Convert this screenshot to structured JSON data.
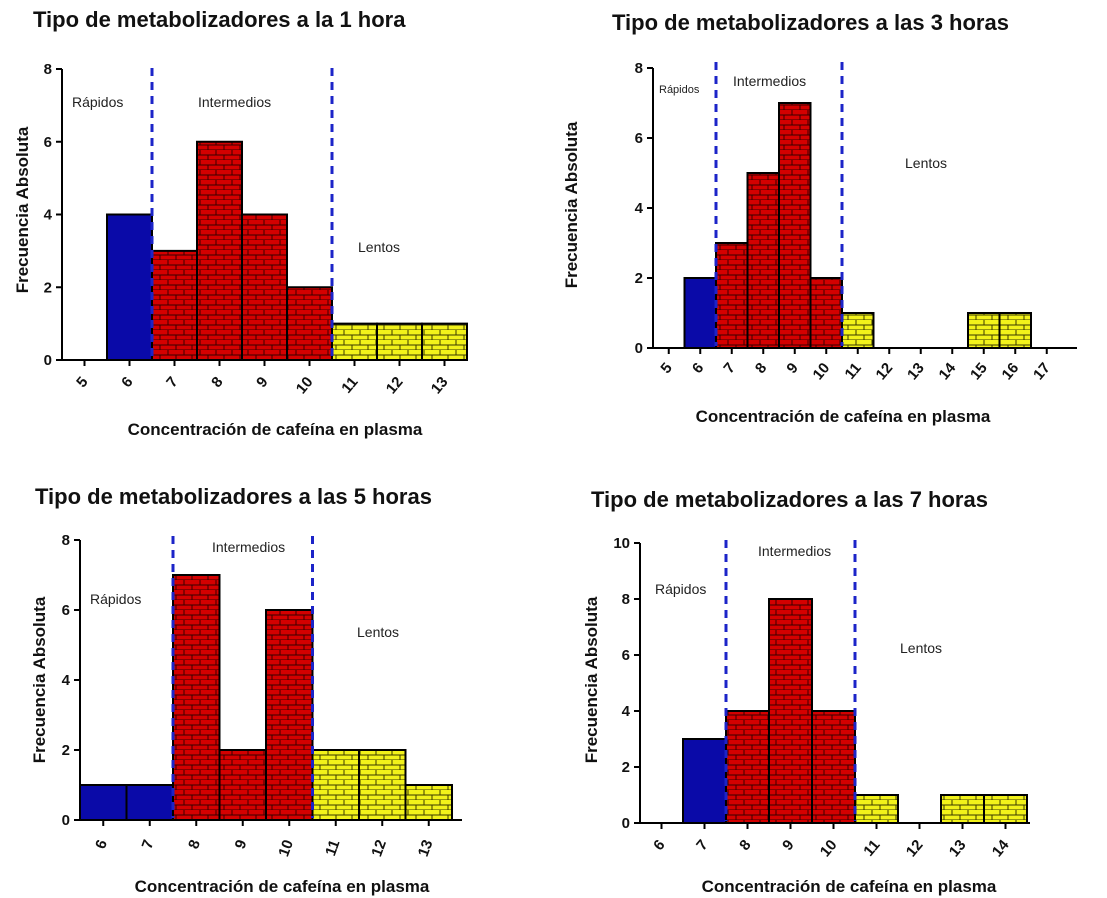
{
  "chart_data": [
    {
      "type": "bar",
      "title": "Tipo de metabolizadores a la 1 hora",
      "xlabel": "Concentración de cafeína en plasma",
      "ylabel": "Frecuencia Absoluta",
      "categories": [
        "5",
        "6",
        "7",
        "8",
        "9",
        "10",
        "11",
        "12",
        "13"
      ],
      "values": [
        0,
        4,
        3,
        6,
        4,
        2,
        1,
        1,
        1
      ],
      "groups": [
        "Rápidos",
        "Rápidos",
        "Intermedios",
        "Intermedios",
        "Intermedios",
        "Intermedios",
        "Lentos",
        "Lentos",
        "Lentos"
      ],
      "ylim": [
        0,
        8
      ],
      "yticks": [
        0,
        2,
        4,
        6,
        8
      ],
      "regions": [
        "Rápidos",
        "Intermedios",
        "Lentos"
      ]
    },
    {
      "type": "bar",
      "title": "Tipo de metabolizadores a las 3 horas",
      "xlabel": "Concentración de cafeína en plasma",
      "ylabel": "Frecuencia Absoluta",
      "categories": [
        "5",
        "6",
        "7",
        "8",
        "9",
        "10",
        "11",
        "12",
        "13",
        "14",
        "15",
        "16",
        "17"
      ],
      "values": [
        0,
        2,
        3,
        5,
        7,
        2,
        1,
        0,
        0,
        0,
        1,
        1,
        0
      ],
      "groups": [
        "Rápidos",
        "Rápidos",
        "Intermedios",
        "Intermedios",
        "Intermedios",
        "Intermedios",
        "Lentos",
        "Lentos",
        "Lentos",
        "Lentos",
        "Lentos",
        "Lentos",
        "Lentos"
      ],
      "ylim": [
        0,
        8
      ],
      "yticks": [
        0,
        2,
        4,
        6,
        8
      ],
      "regions": [
        "Rápidos",
        "Intermedios",
        "Lentos"
      ]
    },
    {
      "type": "bar",
      "title": "Tipo de metabolizadores a las 5 horas",
      "xlabel": "Concentración de cafeína en plasma",
      "ylabel": "Frecuencia Absoluta",
      "categories": [
        "6",
        "7",
        "8",
        "9",
        "10",
        "11",
        "12",
        "13"
      ],
      "values": [
        1,
        1,
        7,
        2,
        6,
        2,
        2,
        1
      ],
      "groups": [
        "Rápidos",
        "Rápidos",
        "Intermedios",
        "Intermedios",
        "Intermedios",
        "Lentos",
        "Lentos",
        "Lentos"
      ],
      "ylim": [
        0,
        8
      ],
      "yticks": [
        0,
        2,
        4,
        6,
        8
      ],
      "regions": [
        "Rápidos",
        "Intermedios",
        "Lentos"
      ]
    },
    {
      "type": "bar",
      "title": "Tipo de metabolizadores a las 7 horas",
      "xlabel": "Concentración de cafeína en plasma",
      "ylabel": "Frecuencia Absoluta",
      "categories": [
        "6",
        "7",
        "8",
        "9",
        "10",
        "11",
        "12",
        "13",
        "14"
      ],
      "values": [
        0,
        3,
        4,
        8,
        4,
        1,
        0,
        1,
        1
      ],
      "groups": [
        "Rápidos",
        "Rápidos",
        "Intermedios",
        "Intermedios",
        "Intermedios",
        "Lentos",
        "Lentos",
        "Lentos",
        "Lentos"
      ],
      "ylim": [
        0,
        10
      ],
      "yticks": [
        0,
        2,
        4,
        6,
        8,
        10
      ],
      "regions": [
        "Rápidos",
        "Intermedios",
        "Lentos"
      ]
    }
  ],
  "colors": {
    "Rápidos": "#0a0aa8",
    "Intermedios": "#d40000",
    "Lentos": "#f2f21a",
    "divider": "#1c24c8"
  }
}
